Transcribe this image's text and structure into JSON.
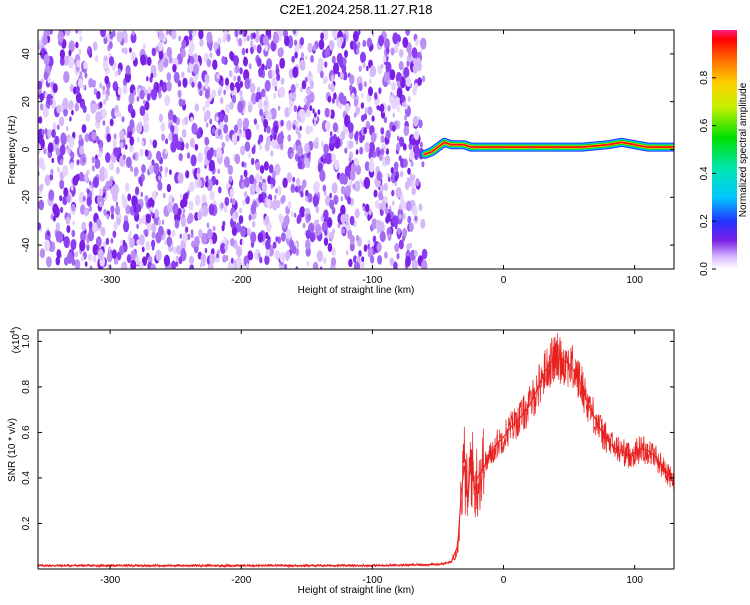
{
  "title": "C2E1.2024.258.11.27.R18",
  "colors": {
    "snr_line": "#e8201e",
    "spectrogram_noise": "#7a1fe6",
    "axis": "#000000"
  },
  "chart_data": [
    {
      "type": "heatmap",
      "name": "spectrogram",
      "xlabel": "Height of straight line (km)",
      "ylabel": "Frequency (Hz)",
      "xlim": [
        -355,
        130
      ],
      "ylim": [
        -50,
        50
      ],
      "xticks": [
        -300,
        -200,
        -100,
        0,
        100
      ],
      "yticks": [
        -40,
        -20,
        0,
        20,
        40
      ],
      "noise_region_x": [
        -355,
        -60
      ],
      "signal_track": {
        "x": [
          -60,
          -55,
          -50,
          -45,
          -40,
          -35,
          -30,
          -25,
          -20,
          -10,
          0,
          20,
          40,
          60,
          80,
          90,
          100,
          110,
          130
        ],
        "frequency": [
          -2,
          -1,
          1,
          3,
          2,
          2,
          2,
          1,
          1,
          1,
          1,
          1,
          1,
          1,
          2,
          3,
          2,
          1,
          1
        ]
      },
      "colorbar": {
        "label": "Normalized spectral amplitude",
        "range": [
          0,
          1
        ],
        "ticks": [
          "0.0",
          "0.2",
          "0.4",
          "0.6",
          "0.8"
        ]
      }
    },
    {
      "type": "line",
      "name": "snr",
      "xlabel": "Height of straight line (km)",
      "ylabel": "SNR (10 * v/v)",
      "ylabel_multiplier": "(x10",
      "ylabel_exponent": "4",
      "xlim": [
        -355,
        130
      ],
      "ylim": [
        0,
        1.05
      ],
      "xticks": [
        -300,
        -200,
        -100,
        0,
        100
      ],
      "yticks": [
        0.2,
        0.4,
        0.6,
        0.8,
        1.0
      ],
      "series": [
        {
          "x": [
            -355,
            -300,
            -250,
            -200,
            -150,
            -100,
            -50,
            -40,
            -35,
            -32,
            -30,
            -27,
            -25,
            -22,
            -20,
            -15,
            -10,
            -5,
            0,
            5,
            10,
            15,
            20,
            25,
            30,
            35,
            40,
            45,
            50,
            55,
            60,
            65,
            70,
            75,
            80,
            85,
            90,
            95,
            100,
            105,
            110,
            115,
            120,
            125,
            130
          ],
          "y": [
            0.015,
            0.015,
            0.015,
            0.015,
            0.015,
            0.015,
            0.02,
            0.03,
            0.1,
            0.35,
            0.45,
            0.3,
            0.5,
            0.35,
            0.4,
            0.45,
            0.5,
            0.55,
            0.58,
            0.62,
            0.65,
            0.68,
            0.72,
            0.78,
            0.85,
            0.9,
            0.93,
            0.92,
            0.9,
            0.86,
            0.8,
            0.72,
            0.66,
            0.6,
            0.56,
            0.53,
            0.52,
            0.5,
            0.51,
            0.53,
            0.52,
            0.5,
            0.46,
            0.42,
            0.38
          ]
        }
      ]
    }
  ]
}
